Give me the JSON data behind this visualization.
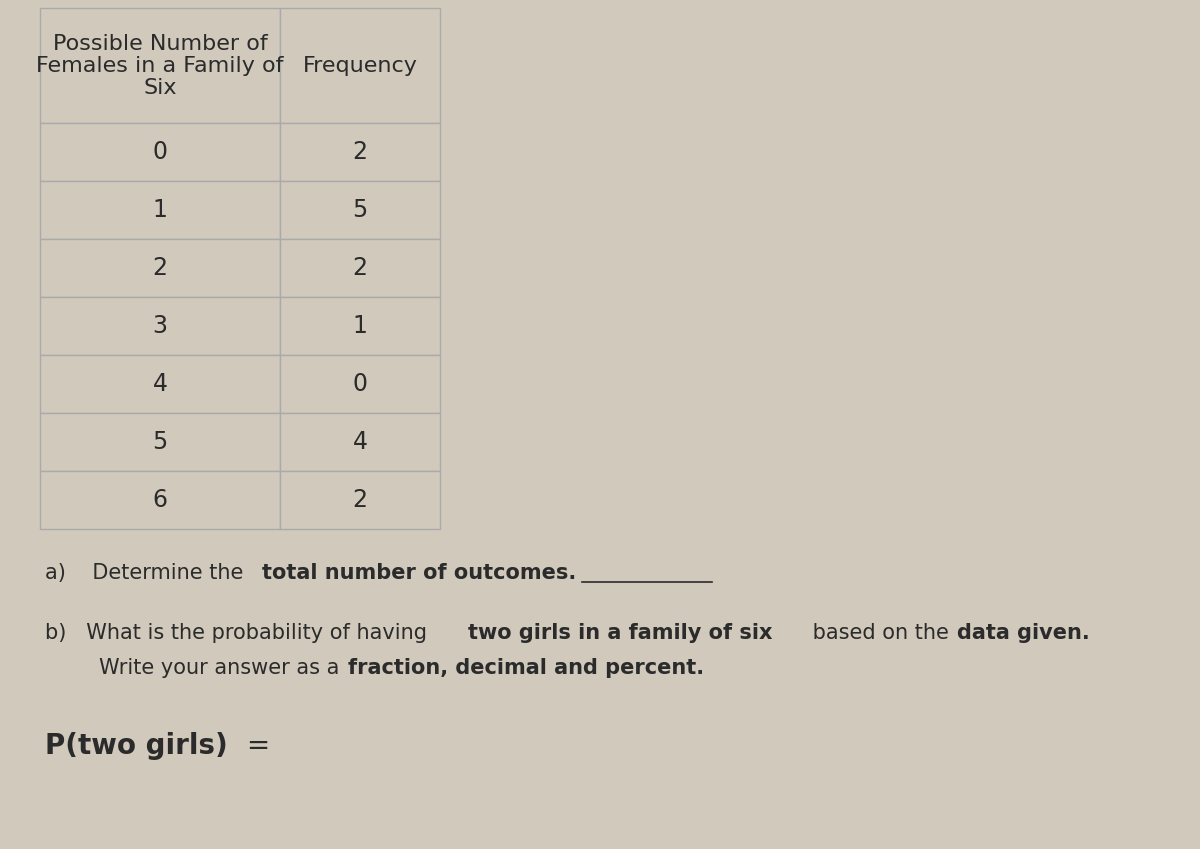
{
  "col1_header_lines": [
    "Possible Number of",
    "Females in a Family of",
    "Six"
  ],
  "col2_header": "Frequency",
  "rows": [
    [
      0,
      2
    ],
    [
      1,
      5
    ],
    [
      2,
      2
    ],
    [
      3,
      1
    ],
    [
      4,
      0
    ],
    [
      5,
      4
    ],
    [
      6,
      2
    ]
  ],
  "bg_color": "#d0c9bc",
  "line_color": "#aaaaaa",
  "text_color": "#2b2b2b",
  "table_font_size": 17,
  "text_font_size": 15,
  "p_font_size": 20
}
